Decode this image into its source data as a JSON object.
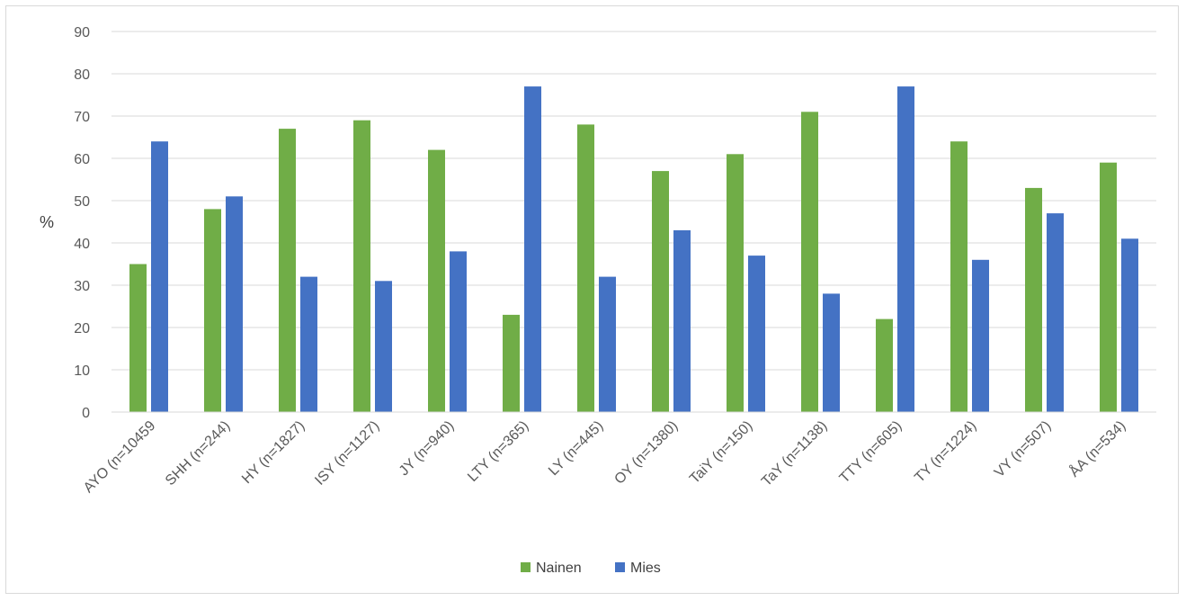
{
  "chart_data": {
    "type": "bar",
    "title": "",
    "xlabel": "",
    "ylabel": "%",
    "ylim": [
      0,
      90
    ],
    "yticks": [
      0,
      10,
      20,
      30,
      40,
      50,
      60,
      70,
      80,
      90
    ],
    "grid": true,
    "legend_position": "bottom",
    "categories": [
      "AYO (n=10459",
      "SHH (n=244)",
      "HY (n=1827)",
      "ISY (n=1127)",
      "JY (n=940)",
      "LTY (n=365)",
      "LY (n=445)",
      "OY (n=1380)",
      "TaiY (n=150)",
      "TaY (n=1138)",
      "TTY (n=605)",
      "TY (n=1224)",
      "VY (n=507)",
      "ÅA (n=534)"
    ],
    "series": [
      {
        "name": "Nainen",
        "color": "#70ad47",
        "values": [
          35,
          48,
          67,
          69,
          62,
          23,
          68,
          57,
          61,
          71,
          22,
          64,
          53,
          59
        ]
      },
      {
        "name": "Mies",
        "color": "#4472c4",
        "values": [
          64,
          51,
          32,
          31,
          38,
          77,
          32,
          43,
          37,
          28,
          77,
          36,
          47,
          41
        ]
      }
    ]
  }
}
